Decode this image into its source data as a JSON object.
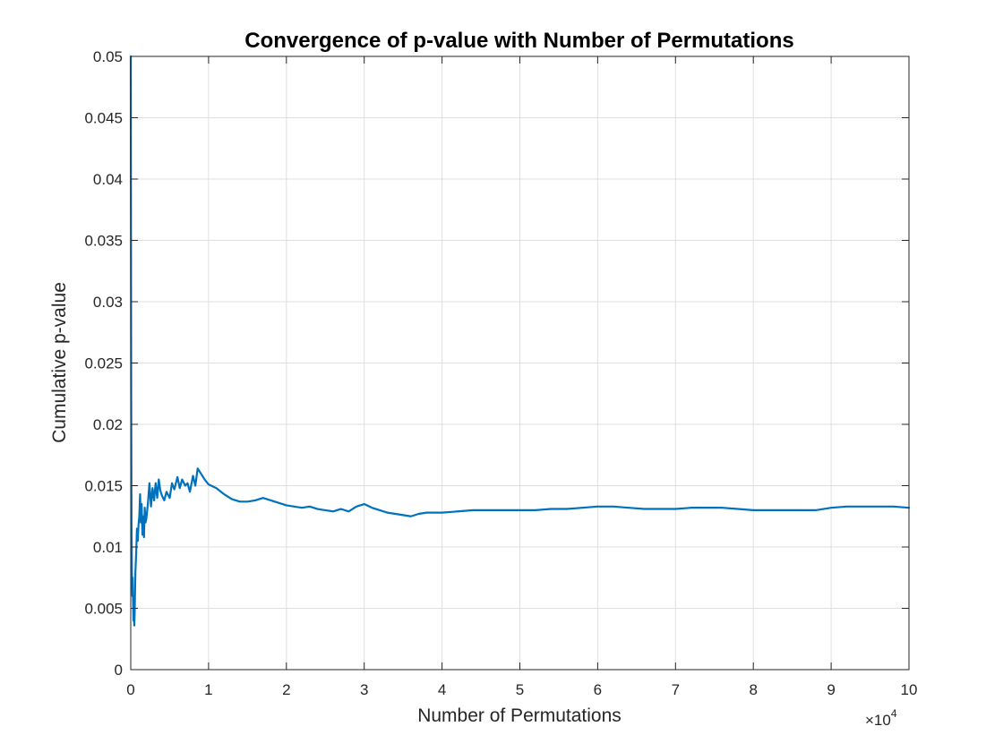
{
  "figure": {
    "title": "Convergence of p-value with Number of Permutations",
    "xlabel": "Number of Permutations",
    "ylabel": "Cumulative p-value",
    "x_multiplier_base": "×10",
    "x_multiplier_exp": "4"
  },
  "chart_data": {
    "type": "line",
    "title": "Convergence of p-value with Number of Permutations",
    "xlabel": "Number of Permutations",
    "ylabel": "Cumulative p-value",
    "xlim": [
      0,
      100000
    ],
    "ylim": [
      0,
      0.05
    ],
    "x_tick_values": [
      0,
      10000,
      20000,
      30000,
      40000,
      50000,
      60000,
      70000,
      80000,
      90000,
      100000
    ],
    "x_tick_labels": [
      "0",
      "1",
      "2",
      "3",
      "4",
      "5",
      "6",
      "7",
      "8",
      "9",
      "10"
    ],
    "x_tick_multiplier": "×10^4",
    "y_tick_values": [
      0,
      0.005,
      0.01,
      0.015,
      0.02,
      0.025,
      0.03,
      0.035,
      0.04,
      0.045,
      0.05
    ],
    "y_tick_labels": [
      "0",
      "0.005",
      "0.01",
      "0.015",
      "0.02",
      "0.025",
      "0.03",
      "0.035",
      "0.04",
      "0.045",
      "0.05"
    ],
    "grid": true,
    "line_color": "#0072BD",
    "series": [
      {
        "x": [
          1,
          20,
          40,
          60,
          80,
          100,
          150,
          200,
          250,
          300,
          350,
          400,
          450,
          500,
          600,
          700,
          800,
          900,
          1000,
          1100,
          1200,
          1300,
          1400,
          1500,
          1600,
          1700,
          1800,
          1900,
          2000,
          2200,
          2400,
          2600,
          2800,
          3000,
          3200,
          3400,
          3600,
          3800,
          4000,
          4300,
          4600,
          5000,
          5300,
          5600,
          6000,
          6300,
          6600,
          7000,
          7300,
          7600,
          8000,
          8300,
          8600,
          9000,
          9500,
          10000,
          11000,
          12000,
          13000,
          14000,
          15000,
          16000,
          17000,
          18000,
          19000,
          20000,
          21000,
          22000,
          23000,
          24000,
          25000,
          26000,
          27000,
          28000,
          29000,
          30000,
          31000,
          32000,
          33000,
          34000,
          35000,
          36000,
          37000,
          38000,
          39000,
          40000,
          42000,
          44000,
          46000,
          48000,
          50000,
          52000,
          54000,
          56000,
          58000,
          60000,
          62000,
          64000,
          66000,
          68000,
          70000,
          72000,
          74000,
          76000,
          78000,
          80000,
          82000,
          84000,
          86000,
          88000,
          90000,
          92000,
          94000,
          96000,
          98000,
          100000
        ],
        "y": [
          0.05,
          0.04,
          0.03,
          0.022,
          0.017,
          0.012,
          0.008,
          0.006,
          0.0075,
          0.0055,
          0.004,
          0.0058,
          0.0036,
          0.0045,
          0.008,
          0.0095,
          0.0115,
          0.0105,
          0.0118,
          0.0125,
          0.0143,
          0.012,
          0.0135,
          0.011,
          0.0125,
          0.0108,
          0.0132,
          0.012,
          0.0123,
          0.0135,
          0.0152,
          0.0133,
          0.0148,
          0.0138,
          0.0152,
          0.014,
          0.0155,
          0.0146,
          0.0142,
          0.0138,
          0.0145,
          0.014,
          0.0152,
          0.0147,
          0.0157,
          0.0148,
          0.0155,
          0.015,
          0.0152,
          0.0145,
          0.0158,
          0.015,
          0.0164,
          0.016,
          0.0155,
          0.0151,
          0.0148,
          0.0143,
          0.0139,
          0.0137,
          0.0137,
          0.0138,
          0.014,
          0.0138,
          0.0136,
          0.0134,
          0.0133,
          0.0132,
          0.0133,
          0.0131,
          0.013,
          0.0129,
          0.0131,
          0.0129,
          0.0133,
          0.0135,
          0.0132,
          0.013,
          0.0128,
          0.0127,
          0.0126,
          0.0125,
          0.0127,
          0.0128,
          0.0128,
          0.0128,
          0.0129,
          0.013,
          0.013,
          0.013,
          0.013,
          0.013,
          0.0131,
          0.0131,
          0.0132,
          0.0133,
          0.0133,
          0.0132,
          0.0131,
          0.0131,
          0.0131,
          0.0132,
          0.0132,
          0.0132,
          0.0131,
          0.013,
          0.013,
          0.013,
          0.013,
          0.013,
          0.0132,
          0.0133,
          0.0133,
          0.0133,
          0.0133,
          0.0132
        ]
      }
    ]
  }
}
